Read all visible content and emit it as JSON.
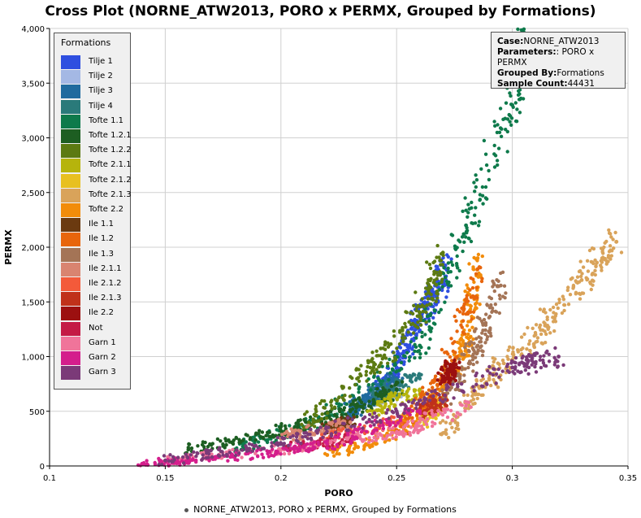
{
  "chart_data": {
    "type": "scatter",
    "title": "Cross Plot (NORNE_ATW2013, PORO x PERMX, Grouped by Formations)",
    "xlabel": "PORO",
    "ylabel": "PERMX",
    "xlim": [
      0.1,
      0.35
    ],
    "ylim": [
      0,
      4000
    ],
    "xticks": [
      "0.1",
      "0.15",
      "0.2",
      "0.25",
      "0.3",
      "0.35"
    ],
    "yticks": [
      "0",
      "500",
      "1,000",
      "1,500",
      "2,000",
      "2,500",
      "3,000",
      "3,500",
      "4,000"
    ],
    "grid": true,
    "legend_title": "Formations",
    "legend_position": "top-left",
    "series": [
      {
        "name": "Tilje 1",
        "color": "#2f4fe0",
        "x": [
          0.24,
          0.25,
          0.258,
          0.265,
          0.272
        ],
        "y": [
          600,
          900,
          1300,
          1550,
          1800
        ]
      },
      {
        "name": "Tilje 2",
        "color": "#a4b8e4",
        "x": [
          0.24,
          0.25
        ],
        "y": [
          600,
          700
        ]
      },
      {
        "name": "Tilje 3",
        "color": "#1f6a9e",
        "x": [
          0.23,
          0.24,
          0.25
        ],
        "y": [
          500,
          650,
          800
        ]
      },
      {
        "name": "Tilje 4",
        "color": "#2a7a7a",
        "x": [
          0.24,
          0.26
        ],
        "y": [
          650,
          800
        ]
      },
      {
        "name": "Tofte 1.1",
        "color": "#0e7a4b",
        "x": [
          0.18,
          0.22,
          0.26,
          0.28,
          0.3,
          0.305
        ],
        "y": [
          150,
          450,
          1100,
          2200,
          3300,
          3900
        ]
      },
      {
        "name": "Tofte 1.2.1",
        "color": "#1d5e22",
        "x": [
          0.16,
          0.2,
          0.23,
          0.25
        ],
        "y": [
          150,
          320,
          500,
          700
        ]
      },
      {
        "name": "Tofte 1.2.2",
        "color": "#5c7a12",
        "x": [
          0.21,
          0.24,
          0.26,
          0.27
        ],
        "y": [
          350,
          900,
          1400,
          1950
        ]
      },
      {
        "name": "Tofte 2.1.1",
        "color": "#b6b40c",
        "x": [
          0.24,
          0.26
        ],
        "y": [
          500,
          700
        ]
      },
      {
        "name": "Tofte 2.1.2",
        "color": "#e8c020",
        "x": [
          0.26,
          0.27
        ],
        "y": [
          400,
          600
        ]
      },
      {
        "name": "Tofte 2.1.3",
        "color": "#d9a35a",
        "x": [
          0.27,
          0.29,
          0.31,
          0.33,
          0.345
        ],
        "y": [
          300,
          800,
          1200,
          1700,
          2050
        ]
      },
      {
        "name": "Tofte 2.2",
        "color": "#f28c0a",
        "x": [
          0.22,
          0.25,
          0.27,
          0.28,
          0.285
        ],
        "y": [
          100,
          300,
          700,
          1100,
          1900
        ]
      },
      {
        "name": "Ile 1.1",
        "color": "#6b3a10",
        "x": [
          0.22,
          0.23
        ],
        "y": [
          350,
          420
        ]
      },
      {
        "name": "Ile 1.2",
        "color": "#e8650c",
        "x": [
          0.25,
          0.27,
          0.285
        ],
        "y": [
          300,
          800,
          1800
        ]
      },
      {
        "name": "Ile 1.3",
        "color": "#a47456",
        "x": [
          0.27,
          0.285,
          0.295
        ],
        "y": [
          600,
          1100,
          1650
        ]
      },
      {
        "name": "Ile 2.1.1",
        "color": "#d98470",
        "x": [
          0.2,
          0.23
        ],
        "y": [
          250,
          400
        ]
      },
      {
        "name": "Ile 2.1.2",
        "color": "#f35a3a",
        "x": [
          0.22,
          0.25
        ],
        "y": [
          250,
          400
        ]
      },
      {
        "name": "Ile 2.1.3",
        "color": "#c0311a",
        "x": [
          0.26,
          0.27
        ],
        "y": [
          500,
          600
        ]
      },
      {
        "name": "Ile 2.2",
        "color": "#9c1010",
        "x": [
          0.27,
          0.275
        ],
        "y": [
          800,
          900
        ]
      },
      {
        "name": "Not",
        "color": "#c41a45",
        "x": [
          0.2,
          0.23
        ],
        "y": [
          150,
          250
        ]
      },
      {
        "name": "Garn 1",
        "color": "#f0749a",
        "x": [
          0.15,
          0.2,
          0.25,
          0.28
        ],
        "y": [
          50,
          150,
          300,
          550
        ]
      },
      {
        "name": "Garn 2",
        "color": "#d41e8c",
        "x": [
          0.14,
          0.18,
          0.22,
          0.26
        ],
        "y": [
          20,
          80,
          200,
          500
        ]
      },
      {
        "name": "Garn 3",
        "color": "#7b3a78",
        "x": [
          0.15,
          0.2,
          0.25,
          0.3,
          0.32
        ],
        "y": [
          50,
          200,
          500,
          900,
          1000
        ]
      }
    ]
  },
  "info": {
    "case_label": "Case:",
    "case_value": "NORNE_ATW2013",
    "params_label": "Parameters:",
    "params_value": ": PORO x PERMX",
    "grouped_label": "Grouped By:",
    "grouped_value": "Formations",
    "count_label": "Sample Count:",
    "count_value": "44431"
  },
  "bottom_legend": "NORNE_ATW2013, PORO x PERMX, Grouped by Formations"
}
